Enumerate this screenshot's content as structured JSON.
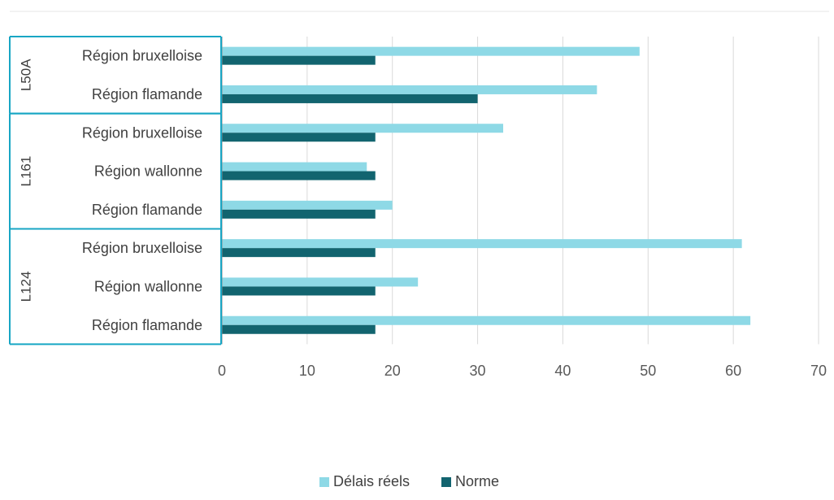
{
  "chart_data": {
    "type": "bar",
    "orientation": "horizontal",
    "title": "",
    "xlabel": "",
    "ylabel": "",
    "xlim": [
      0,
      70
    ],
    "x_ticks": [
      0,
      10,
      20,
      30,
      40,
      50,
      60,
      70
    ],
    "grid": "vertical",
    "legend_position": "bottom",
    "groups": [
      {
        "label": "L50A",
        "categories": [
          "Région bruxelloise",
          "Région flamande"
        ]
      },
      {
        "label": "L161",
        "categories": [
          "Région bruxelloise",
          "Région wallonne",
          "Région flamande"
        ]
      },
      {
        "label": "L124",
        "categories": [
          "Région bruxelloise",
          "Région wallonne",
          "Région flamande"
        ]
      }
    ],
    "series": [
      {
        "name": "Délais réels",
        "color": "#8ed9e6",
        "values": [
          49,
          44,
          33,
          17,
          20,
          61,
          23,
          62
        ]
      },
      {
        "name": "Norme",
        "color": "#12646f",
        "values": [
          18,
          30,
          18,
          18,
          18,
          18,
          18,
          18
        ]
      }
    ],
    "frame_color": "#18a6c4",
    "grid_color": "#d9d9d9",
    "axis_color": "#8c8c8c"
  }
}
